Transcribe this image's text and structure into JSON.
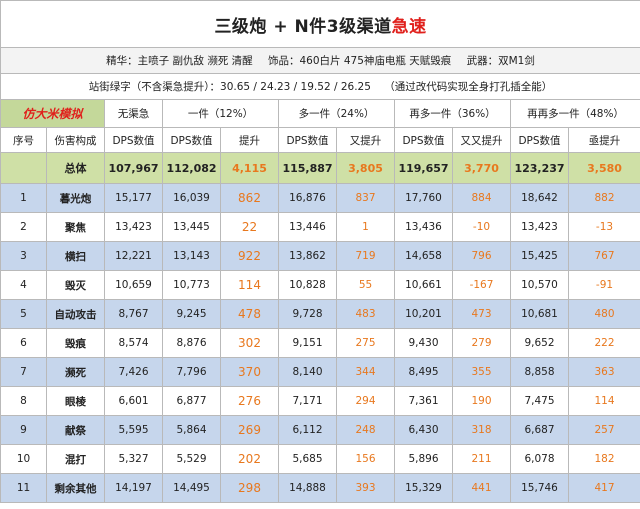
{
  "title": {
    "main": "三级炮 + N件3级渠道",
    "highlight": "急速"
  },
  "info": {
    "essence": "精华：主喷子 副仇敌 濒死 清醒",
    "accessory": "饰品：460白片 475神庙电瓶 天赋毁痕",
    "weapon": "武器：双M1剑"
  },
  "info2": {
    "stats": "站街绿字（不含渠急提升）：30.65 / 24.23 / 19.52 / 26.25",
    "note": "（通过改代码实现全身打孔插全能）"
  },
  "header": {
    "tag": "仿大米模拟",
    "groups": [
      "无渠急",
      "一件（12%）",
      "多一件（24%）",
      "再多一件（36%）",
      "再再多一件（48%）"
    ]
  },
  "subheader": [
    "序号",
    "伤害构成",
    "DPS数值",
    "DPS数值",
    "提升",
    "DPS数值",
    "又提升",
    "DPS数值",
    "又又提升",
    "DPS数值",
    "亟提升"
  ],
  "total": {
    "label": "总体",
    "values": [
      "107,967",
      "112,082",
      "4,115",
      "115,887",
      "3,805",
      "119,657",
      "3,770",
      "123,237",
      "3,580"
    ]
  },
  "rows": [
    {
      "no": "1",
      "name": "暮光炮",
      "v": [
        "15,177",
        "16,039",
        "862",
        "16,876",
        "837",
        "17,760",
        "884",
        "18,642",
        "882"
      ]
    },
    {
      "no": "2",
      "name": "聚焦",
      "v": [
        "13,423",
        "13,445",
        "22",
        "13,446",
        "1",
        "13,436",
        "-10",
        "13,423",
        "-13"
      ]
    },
    {
      "no": "3",
      "name": "横扫",
      "v": [
        "12,221",
        "13,143",
        "922",
        "13,862",
        "719",
        "14,658",
        "796",
        "15,425",
        "767"
      ]
    },
    {
      "no": "4",
      "name": "毁灭",
      "v": [
        "10,659",
        "10,773",
        "114",
        "10,828",
        "55",
        "10,661",
        "-167",
        "10,570",
        "-91"
      ]
    },
    {
      "no": "5",
      "name": "自动攻击",
      "v": [
        "8,767",
        "9,245",
        "478",
        "9,728",
        "483",
        "10,201",
        "473",
        "10,681",
        "480"
      ]
    },
    {
      "no": "6",
      "name": "毁痕",
      "v": [
        "8,574",
        "8,876",
        "302",
        "9,151",
        "275",
        "9,430",
        "279",
        "9,652",
        "222"
      ]
    },
    {
      "no": "7",
      "name": "濒死",
      "v": [
        "7,426",
        "7,796",
        "370",
        "8,140",
        "344",
        "8,495",
        "355",
        "8,858",
        "363"
      ]
    },
    {
      "no": "8",
      "name": "眼棱",
      "v": [
        "6,601",
        "6,877",
        "276",
        "7,171",
        "294",
        "7,361",
        "190",
        "7,475",
        "114"
      ]
    },
    {
      "no": "9",
      "name": "献祭",
      "v": [
        "5,595",
        "5,864",
        "269",
        "6,112",
        "248",
        "6,430",
        "318",
        "6,687",
        "257"
      ]
    },
    {
      "no": "10",
      "name": "混打",
      "v": [
        "5,327",
        "5,529",
        "202",
        "5,685",
        "156",
        "5,896",
        "211",
        "6,078",
        "182"
      ]
    },
    {
      "no": "11",
      "name": "剩余其他",
      "v": [
        "14,197",
        "14,495",
        "298",
        "14,888",
        "393",
        "15,329",
        "441",
        "15,746",
        "417"
      ]
    }
  ]
}
